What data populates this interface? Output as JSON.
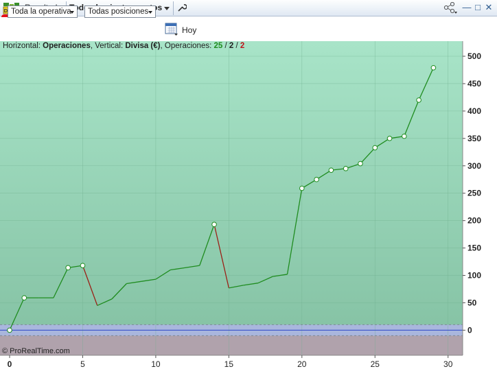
{
  "titlebar": {
    "demo_badge": "DEMO",
    "resultados_label": "Resultados",
    "instrument_label": "Todos los instrumentos",
    "icons": [
      "wrench-icon",
      "share-icon",
      "minimize-icon",
      "maximize-icon",
      "close-icon"
    ]
  },
  "toolbar": {
    "operativa_select": "Toda la operativa",
    "posiciones_select": "Todas posiciones",
    "date_label": "Hoy"
  },
  "chart_info": {
    "horizontal_label": "Horizontal:",
    "horizontal_value": "Operaciones",
    "vertical_label": "Vertical:",
    "vertical_value": "Divisa (€)",
    "operations_label": "Operaciones:",
    "ops_total": "25",
    "ops_sep1": " / ",
    "ops_mid": "2",
    "ops_sep2": " / ",
    "ops_losses": "2"
  },
  "copyright": "© ProRealTime.com",
  "colors": {
    "gain_line": "#1f8c1f",
    "loss_line": "#9b1f16",
    "positive_area_top": "#a8e4c8",
    "positive_area_bottom": "#86c3a5",
    "negative_area": "#b0a2ac",
    "zero_line": "#2d47c7"
  },
  "chart_data": {
    "type": "line",
    "x": [
      0,
      1,
      2,
      3,
      4,
      5,
      6,
      7,
      8,
      9,
      10,
      11,
      12,
      13,
      14,
      15,
      16,
      17,
      18,
      19,
      20,
      21,
      22,
      23,
      24,
      25,
      26,
      27,
      28,
      29
    ],
    "y": [
      0,
      59,
      59,
      59,
      114,
      118,
      45,
      57,
      85,
      89,
      93,
      110,
      114,
      118,
      193,
      77,
      82,
      86,
      98,
      102,
      259,
      275,
      292,
      295,
      304,
      333,
      350,
      354,
      420,
      479
    ],
    "markers_at": [
      0,
      1,
      4,
      5,
      14,
      20,
      21,
      22,
      23,
      24,
      25,
      26,
      27,
      28,
      29
    ],
    "xlim": [
      0,
      31
    ],
    "ylim": [
      -45,
      510
    ],
    "xticks": [
      0,
      5,
      10,
      15,
      20,
      25,
      30
    ],
    "yticks": [
      0,
      50,
      100,
      150,
      200,
      250,
      300,
      350,
      400,
      450,
      500
    ],
    "grid": true,
    "xlabel": "Operaciones",
    "ylabel": "Divisa (€)"
  }
}
